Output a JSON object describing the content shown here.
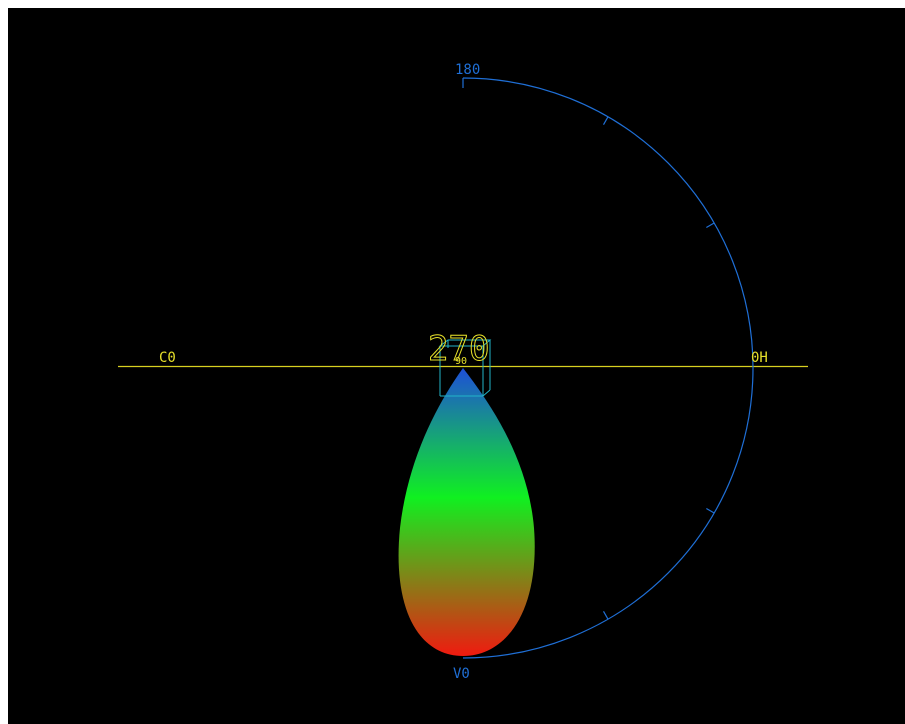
{
  "labels": {
    "top": "180",
    "bottom": "V0",
    "left": "C0",
    "right": "0H",
    "center_large": "270",
    "center_small": "90"
  },
  "colors": {
    "background": "#000000",
    "arc": "#1f6fd6",
    "horizon": "#d8d020",
    "label_yellow": "#e6e02a",
    "box_cyan": "#22b5c8",
    "lobe_top": "#1e4fd8",
    "lobe_mid": "#10f020",
    "lobe_bottom": "#f01a10"
  }
}
